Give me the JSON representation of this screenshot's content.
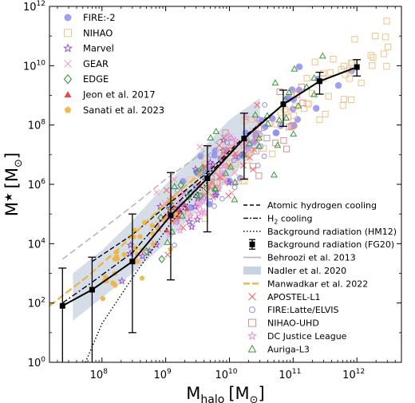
{
  "chart_data": {
    "type": "scatter",
    "xlabel": "M",
    "xlabel_sub": "halo",
    "xlabel_unit": "[M",
    "ylabel": "M",
    "ylabel_unit": "[M",
    "sun_symbol": "⊙",
    "bracket_close": "]",
    "x_scale": "log",
    "y_scale": "log",
    "xlim": [
      15000000.0,
      5000000000000.0
    ],
    "ylim": [
      1,
      1000000000000.0
    ],
    "x_ticks": [
      {
        "value": 100000000.0,
        "base": "10",
        "exp": "8"
      },
      {
        "value": 1000000000.0,
        "base": "10",
        "exp": "9"
      },
      {
        "value": 10000000000.0,
        "base": "10",
        "exp": "10"
      },
      {
        "value": 100000000000.0,
        "base": "10",
        "exp": "11"
      },
      {
        "value": 1000000000000.0,
        "base": "10",
        "exp": "12"
      }
    ],
    "y_ticks": [
      {
        "value": 1,
        "base": "10",
        "exp": "0"
      },
      {
        "value": 100.0,
        "base": "10",
        "exp": "2"
      },
      {
        "value": 10000.0,
        "base": "10",
        "exp": "4"
      },
      {
        "value": 1000000.0,
        "base": "10",
        "exp": "6"
      },
      {
        "value": 100000000.0,
        "base": "10",
        "exp": "8"
      },
      {
        "value": 10000000000.0,
        "base": "10",
        "exp": "10"
      },
      {
        "value": 1000000000000.0,
        "base": "10",
        "exp": "12"
      }
    ],
    "legend_top": [
      {
        "label": "FIRE:-2",
        "marker": "circle-filled",
        "color": "#8f8ff0"
      },
      {
        "label": "NIHAO",
        "marker": "square-open",
        "color": "#f5c08a"
      },
      {
        "label": "Marvel",
        "marker": "star-open",
        "color": "#a24cc8"
      },
      {
        "label": "GEAR",
        "marker": "x",
        "color": "#f2a0b4"
      },
      {
        "label": "EDGE",
        "marker": "diamond-open",
        "color": "#3a9a3a"
      },
      {
        "label": "Jeon et al. 2017",
        "marker": "triangle-filled",
        "color": "#e8484e"
      },
      {
        "label": "Sanati et al. 2023",
        "marker": "pentagon-filled",
        "color": "#f0b23c"
      }
    ],
    "legend_bottom": [
      {
        "label": "Atomic hydrogen cooling",
        "marker": "dashed",
        "color": "#000000"
      },
      {
        "label": "H",
        "sub": "2",
        "label_tail": " cooling",
        "marker": "dashdot",
        "color": "#000000"
      },
      {
        "label": "Background radiation (HM12)",
        "marker": "dotted",
        "color": "#000000"
      },
      {
        "label": "Background radiation (FG20)",
        "marker": "errorbar-square",
        "color": "#000000"
      },
      {
        "label": "Behroozi et al. 2013",
        "marker": "line",
        "color": "#b8b8b8"
      },
      {
        "label": "Nadler et al. 2020",
        "marker": "band",
        "color": "#c7d3e0"
      },
      {
        "label": "Manwadkar et al. 2022",
        "marker": "dashed-thick",
        "color": "#f0b23c"
      },
      {
        "label": "APOSTEL-L1",
        "marker": "x",
        "color": "#f07070"
      },
      {
        "label": "FIRE:Latte/ELVIS",
        "marker": "circle-open",
        "color": "#8f8ff0"
      },
      {
        "label": "NIHAO-UHD",
        "marker": "square-open",
        "color": "#d89090"
      },
      {
        "label": "DC Justice League",
        "marker": "star-open",
        "color": "#f090d8"
      },
      {
        "label": "Auriga-L3",
        "marker": "triangle-open",
        "color": "#3a9a3a"
      }
    ],
    "series": [
      {
        "name": "Background radiation (FG20)",
        "style": "solid-errorbar",
        "x": [
          24000000.0,
          70000000.0,
          300000000.0,
          1200000000.0,
          4500000000.0,
          17000000000.0,
          70000000000.0,
          260000000000.0,
          1000000000000.0
        ],
        "y": [
          80,
          280,
          2500,
          90000.0,
          1600000.0,
          35000000.0,
          500000000.0,
          3000000000.0,
          9000000000.0
        ],
        "y_low": [
          1,
          1,
          10,
          600,
          25000.0,
          1500000.0,
          90000000.0,
          1100000000.0,
          4500000000.0
        ],
        "y_high": [
          1500.0,
          3500.0,
          100000.0,
          2500000.0,
          20000000.0,
          250000000.0,
          1500000000.0,
          6000000000.0,
          16000000000.0
        ]
      },
      {
        "name": "Atomic hydrogen cooling",
        "style": "dashed",
        "x": [
          70000000.0,
          300000000.0,
          1200000000.0,
          4500000000.0,
          17000000000.0,
          70000000000.0
        ],
        "y": [
          2500.0,
          20000.0,
          250000.0,
          2500000.0,
          40000000.0,
          500000000.0
        ]
      },
      {
        "name": "H2 cooling",
        "style": "dashdot",
        "x": [
          24000000.0,
          70000000.0,
          300000000.0,
          1200000000.0,
          4500000000.0,
          17000000000.0
        ],
        "y": [
          100,
          500,
          5000.0,
          150000.0,
          2000000.0,
          35000000.0
        ]
      },
      {
        "name": "Background radiation (HM12)",
        "style": "dotted",
        "x": [
          55000000.0,
          100000000.0,
          300000000.0,
          1200000000.0,
          4500000000.0
        ],
        "y": [
          1,
          20,
          700,
          50000.0,
          1200000.0
        ]
      },
      {
        "name": "Behroozi et al. 2013",
        "style": "gray-dashed",
        "x": [
          24000000.0,
          100000000.0,
          400000000.0,
          1000000000.0,
          3000000000.0,
          10000000000.0
        ],
        "y": [
          3000.0,
          30000.0,
          300000.0,
          1500000.0,
          8000000.0,
          60000000.0
        ]
      },
      {
        "name": "Manwadkar et al. 2022",
        "style": "orange-dashed",
        "x": [
          15000000.0,
          60000000.0,
          200000000.0,
          600000000.0,
          1500000000.0,
          4000000000.0
        ],
        "y": [
          80,
          800,
          8000.0,
          80000.0,
          500000.0,
          3000000.0
        ]
      },
      {
        "name": "Nadler et al. 2020",
        "style": "band",
        "x": [
          35000000.0,
          100000000.0,
          300000000.0,
          1000000000.0,
          3000000000.0,
          10000000000.0,
          30000000000.0
        ],
        "y_low": [
          25,
          150,
          1000.0,
          10000.0,
          120000.0,
          1500000.0,
          20000000.0
        ],
        "y_high": [
          1000.0,
          6000.0,
          60000.0,
          1000000.0,
          10000000.0,
          150000000.0,
          800000000.0
        ]
      }
    ],
    "clouds": [
      {
        "name": "FIRE:-2",
        "marker": "circle-filled",
        "color": "#8f8ff0",
        "n": 40,
        "xmin": 800000000.0,
        "xmax": 1000000000000.0,
        "scatter": 0.55
      },
      {
        "name": "NIHAO",
        "marker": "square-open",
        "color": "#f5c08a",
        "n": 70,
        "xmin": 2000000000.0,
        "xmax": 3500000000000.0,
        "scatter": 0.5
      },
      {
        "name": "Marvel",
        "marker": "star-open",
        "color": "#a24cc8",
        "n": 24,
        "xmin": 200000000.0,
        "xmax": 20000000000.0,
        "scatter": 0.6
      },
      {
        "name": "GEAR",
        "marker": "x",
        "color": "#f2a0b4",
        "n": 30,
        "xmin": 400000000.0,
        "xmax": 30000000000.0,
        "scatter": 0.6
      },
      {
        "name": "EDGE",
        "marker": "diamond-open",
        "color": "#3a9a3a",
        "n": 12,
        "xmin": 500000000.0,
        "xmax": 5000000000.0,
        "scatter": 0.5
      },
      {
        "name": "Jeon et al. 2017",
        "marker": "triangle-filled",
        "color": "#e8484e",
        "n": 8,
        "xmin": 1000000000.0,
        "xmax": 4000000000.0,
        "scatter": 0.35
      },
      {
        "name": "Sanati et al. 2023",
        "marker": "pentagon-filled",
        "color": "#f0b23c",
        "n": 30,
        "xmin": 100000000.0,
        "xmax": 1500000000.0,
        "scatter": 0.5
      },
      {
        "name": "APOSTEL-L1",
        "marker": "x",
        "color": "#f07070",
        "n": 35,
        "xmin": 1000000000.0,
        "xmax": 30000000000.0,
        "scatter": 0.6
      },
      {
        "name": "FIRE:Latte/ELVIS",
        "marker": "circle-open",
        "color": "#8f8ff0",
        "n": 35,
        "xmin": 1000000000.0,
        "xmax": 40000000000.0,
        "scatter": 0.6
      },
      {
        "name": "NIHAO-UHD",
        "marker": "square-open",
        "color": "#d89090",
        "n": 25,
        "xmin": 3000000000.0,
        "xmax": 200000000000.0,
        "scatter": 0.5
      },
      {
        "name": "DC Justice League",
        "marker": "star-open",
        "color": "#f090d8",
        "n": 25,
        "xmin": 1000000000.0,
        "xmax": 20000000000.0,
        "scatter": 0.55
      },
      {
        "name": "Auriga-L3",
        "marker": "triangle-open",
        "color": "#3a9a3a",
        "n": 35,
        "xmin": 600000000.0,
        "xmax": 300000000000.0,
        "scatter": 0.75
      }
    ]
  }
}
